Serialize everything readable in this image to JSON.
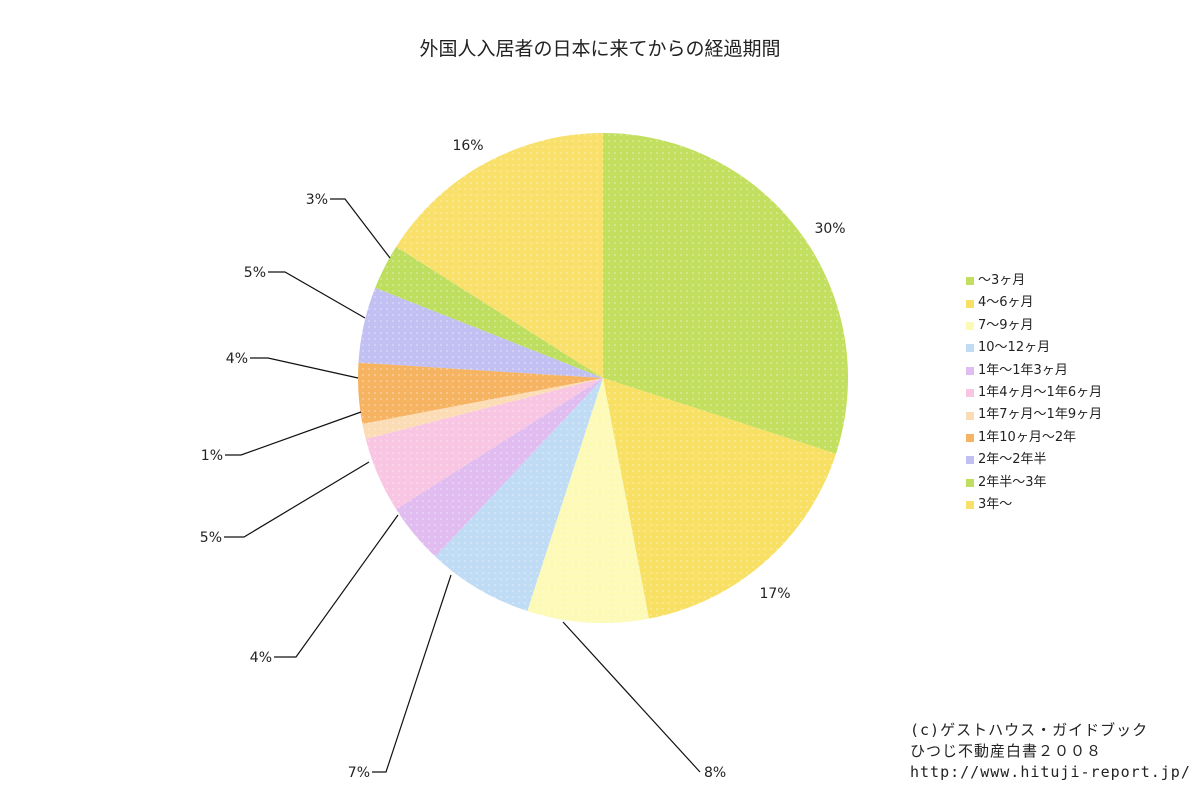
{
  "chart_data": {
    "type": "pie",
    "title": "外国人入居者の日本に来てからの経過期間",
    "start_angle": "12 o'clock",
    "direction": "clockwise",
    "slices": [
      {
        "label": "〜3ヶ月",
        "value": 30,
        "display": "30%",
        "color": "#c3df5f"
      },
      {
        "label": "4〜6ヶ月",
        "value": 17,
        "display": "17%",
        "color": "#f7e064"
      },
      {
        "label": "7〜9ヶ月",
        "value": 8,
        "display": "8%",
        "color": "#fcfab6"
      },
      {
        "label": "10〜12ヶ月",
        "value": 7,
        "display": "7%",
        "color": "#bfdcf4"
      },
      {
        "label": "1年〜1年3ヶ月",
        "value": 4,
        "display": "4%",
        "color": "#e0bcf0"
      },
      {
        "label": "1年4ヶ月〜1年6ヶ月",
        "value": 5,
        "display": "5%",
        "color": "#f8c6e2"
      },
      {
        "label": "1年7ヶ月〜1年9ヶ月",
        "value": 1,
        "display": "1%",
        "color": "#fbdcb4"
      },
      {
        "label": "1年10ヶ月〜2年",
        "value": 4,
        "display": "4%",
        "color": "#f6b462"
      },
      {
        "label": "2年〜2年半",
        "value": 5,
        "display": "5%",
        "color": "#c2c0f2"
      },
      {
        "label": "2年半〜3年",
        "value": 3,
        "display": "3%",
        "color": "#bede60"
      },
      {
        "label": "3年〜",
        "value": 16,
        "display": "16%",
        "color": "#f8e06a"
      }
    ],
    "legend_placement": "right"
  },
  "copyright": {
    "line1": "(c)ゲストハウス・ガイドブック",
    "line2": "ひつじ不動産白書２００８",
    "line3": "http://www.hituji-report.jp/"
  }
}
